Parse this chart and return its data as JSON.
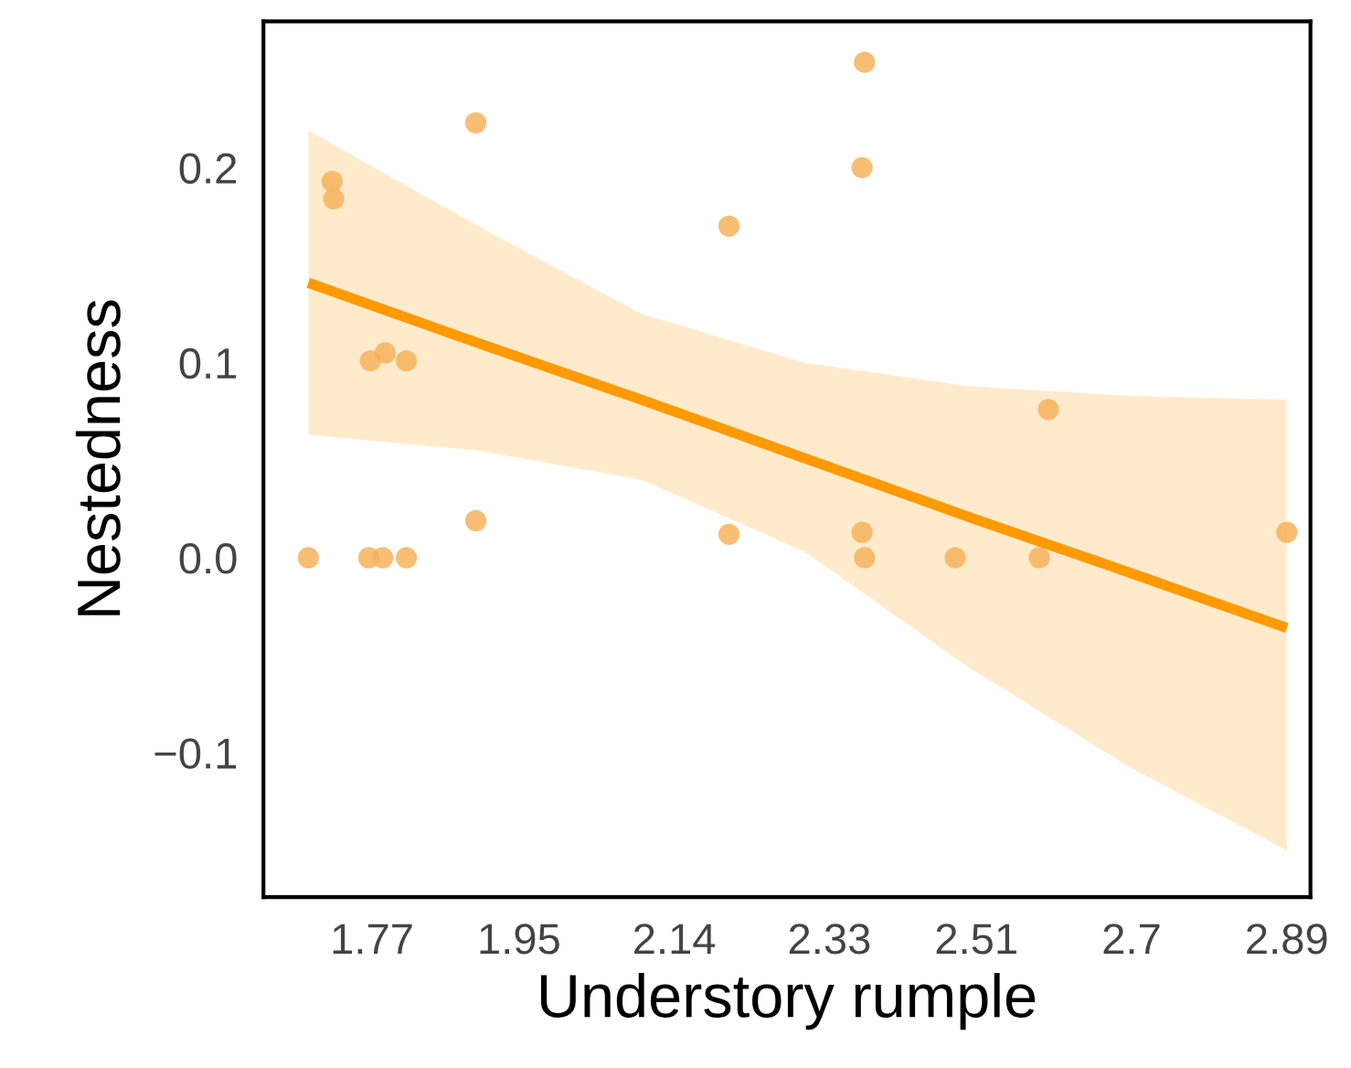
{
  "chart_data": {
    "type": "scatter",
    "xlabel": "Understory rumple",
    "ylabel": "Nestedness",
    "xlim": [
      1.637,
      2.919
    ],
    "ylim": [
      -0.174,
      0.275
    ],
    "xticks": [
      1.77,
      1.95,
      2.14,
      2.33,
      2.51,
      2.7,
      2.89
    ],
    "yticks": [
      {
        "value": -0.1,
        "label": "−0.1"
      },
      {
        "value": 0,
        "label": "0.0"
      },
      0.1,
      0.2
    ],
    "series": [
      {
        "marker": "circle",
        "color": "#f6b35c",
        "x": [
          1.692,
          1.721,
          1.723,
          1.897,
          1.768,
          1.786,
          1.812,
          1.766,
          1.783,
          1.812,
          1.897,
          2.207,
          2.207,
          2.373,
          2.37,
          2.598,
          2.37,
          2.373,
          2.484,
          2.587,
          2.89
        ],
        "values": [
          0.0,
          0.193,
          0.184,
          0.223,
          0.101,
          0.105,
          0.101,
          0.0,
          0.0,
          0.0,
          0.019,
          0.17,
          0.012,
          0.254,
          0.2,
          0.076,
          0.013,
          0.0,
          0.0,
          0.0,
          0.013
        ]
      },
      {
        "type": "line",
        "color": "#ff9a00",
        "line_style": "solid",
        "x": [
          1.692,
          1.9,
          2.1,
          2.3,
          2.5,
          2.7,
          2.89
        ],
        "values": [
          0.141,
          0.11,
          0.081,
          0.051,
          0.021,
          -0.008,
          -0.036
        ],
        "upper": [
          0.219,
          0.17,
          0.125,
          0.1,
          0.088,
          0.083,
          0.081
        ],
        "lower": [
          0.063,
          0.055,
          0.04,
          0.003,
          -0.056,
          -0.108,
          -0.15
        ]
      }
    ]
  }
}
